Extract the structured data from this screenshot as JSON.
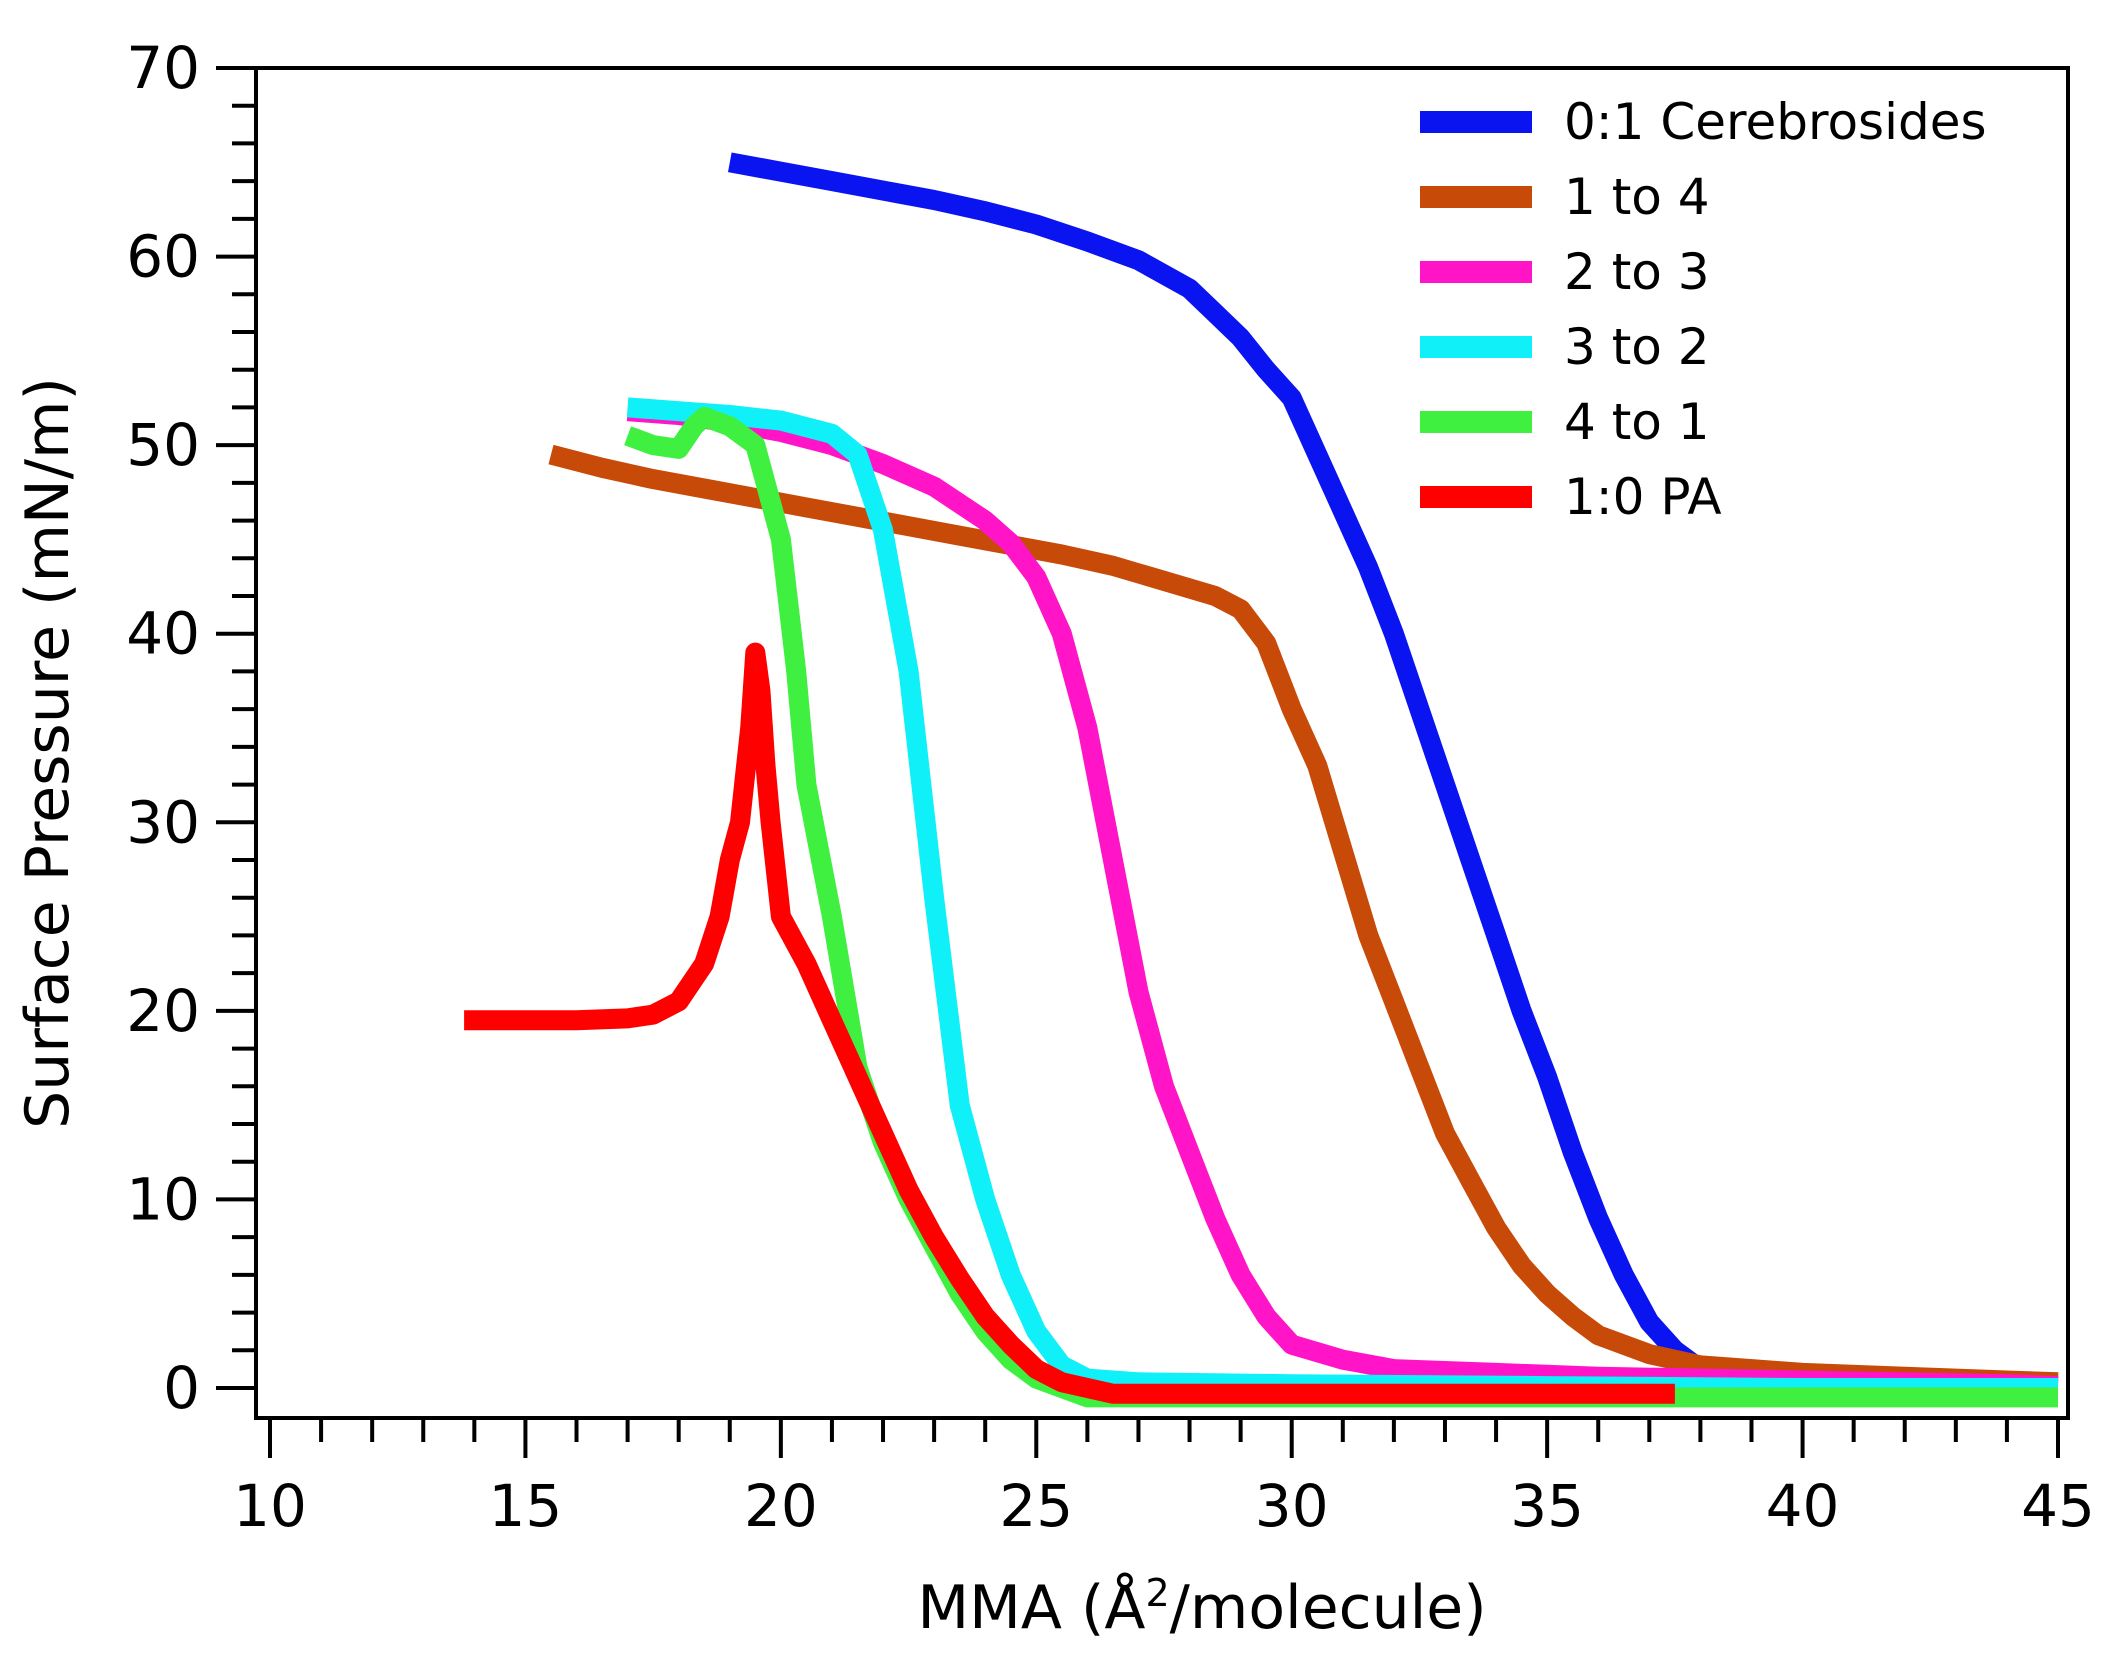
{
  "chart_data": {
    "type": "line",
    "xlabel": "MMA (Å²/molecule)",
    "xlabel_parts": {
      "before": "MMA (Å",
      "sup": "2",
      "after": "/molecule)"
    },
    "ylabel": "Surface Pressure (mN/m)",
    "xlim": [
      10,
      45
    ],
    "ylim": [
      0,
      70
    ],
    "xticks": [
      10,
      15,
      20,
      25,
      30,
      35,
      40,
      45
    ],
    "yticks": [
      0,
      10,
      20,
      30,
      40,
      50,
      60,
      70
    ],
    "grid": false,
    "legend_position": "top-right",
    "series": [
      {
        "name": "0:1 Cerebrosides",
        "color": "#0a14f0",
        "x": [
          19.0,
          20.0,
          21.0,
          22.0,
          23.0,
          24.0,
          25.0,
          26.0,
          27.0,
          28.0,
          28.5,
          29.0,
          29.5,
          30.0,
          30.5,
          31.0,
          31.5,
          32.0,
          32.5,
          33.0,
          33.5,
          34.0,
          34.5,
          35.0,
          35.5,
          36.0,
          36.5,
          37.0,
          37.5,
          38.0
        ],
        "y": [
          65.0,
          64.5,
          64.0,
          63.5,
          63.0,
          62.4,
          61.7,
          60.8,
          59.8,
          58.3,
          57.0,
          55.7,
          54.0,
          52.5,
          49.5,
          46.5,
          43.5,
          40.0,
          36.0,
          32.0,
          28.0,
          24.0,
          20.0,
          16.5,
          12.5,
          9.0,
          6.0,
          3.5,
          2.0,
          1.0
        ]
      },
      {
        "name": "1 to 4",
        "color": "#c84a08",
        "x": [
          15.5,
          16.5,
          17.5,
          18.5,
          19.5,
          20.5,
          21.5,
          22.5,
          23.5,
          24.5,
          25.5,
          26.5,
          27.5,
          28.5,
          29.0,
          29.5,
          30.0,
          30.5,
          31.0,
          31.5,
          32.0,
          32.5,
          33.0,
          33.5,
          34.0,
          34.5,
          35.0,
          35.5,
          36.0,
          37.0,
          38.0,
          39.0,
          40.0,
          42.0,
          44.0,
          45.0
        ],
        "y": [
          49.5,
          48.8,
          48.2,
          47.7,
          47.2,
          46.7,
          46.2,
          45.7,
          45.2,
          44.7,
          44.2,
          43.6,
          42.8,
          42.0,
          41.3,
          39.5,
          36.0,
          33.0,
          28.5,
          24.0,
          20.5,
          17.0,
          13.5,
          11.0,
          8.5,
          6.5,
          5.0,
          3.8,
          2.8,
          1.8,
          1.2,
          1.0,
          0.8,
          0.6,
          0.4,
          0.3
        ]
      },
      {
        "name": "2 to 3",
        "color": "#ff14c8",
        "x": [
          17.0,
          18.0,
          19.0,
          20.0,
          21.0,
          22.0,
          23.0,
          24.0,
          24.5,
          25.0,
          25.5,
          26.0,
          26.5,
          27.0,
          27.5,
          28.0,
          28.5,
          29.0,
          29.5,
          30.0,
          31.0,
          32.0,
          34.0,
          36.0,
          40.0,
          44.0,
          45.0
        ],
        "y": [
          51.8,
          51.6,
          51.2,
          50.7,
          50.0,
          49.0,
          47.8,
          46.0,
          44.8,
          43.0,
          40.0,
          35.0,
          28.0,
          21.0,
          16.0,
          12.5,
          9.0,
          6.0,
          3.8,
          2.3,
          1.5,
          1.0,
          0.8,
          0.6,
          0.4,
          0.2,
          0.1
        ]
      },
      {
        "name": "3 to 2",
        "color": "#10f0f8",
        "x": [
          17.0,
          18.0,
          19.0,
          20.0,
          21.0,
          21.5,
          22.0,
          22.5,
          23.0,
          23.5,
          24.0,
          24.5,
          25.0,
          25.5,
          26.0,
          27.0,
          30.0,
          35.0,
          40.0,
          45.0
        ],
        "y": [
          52.0,
          51.8,
          51.6,
          51.3,
          50.6,
          49.5,
          45.5,
          38.0,
          26.0,
          15.0,
          10.0,
          6.0,
          3.0,
          1.2,
          0.5,
          0.3,
          0.2,
          0.1,
          0.0,
          0.0
        ]
      },
      {
        "name": "4 to 1",
        "color": "#40f040",
        "x": [
          17.0,
          17.5,
          18.0,
          18.3,
          18.5,
          19.0,
          19.5,
          20.0,
          20.3,
          20.5,
          21.0,
          21.5,
          22.0,
          22.5,
          23.0,
          23.5,
          24.0,
          24.5,
          25.0,
          25.5,
          26.0,
          27.0,
          30.0,
          35.0,
          40.0,
          45.0
        ],
        "y": [
          50.5,
          50.0,
          49.8,
          51.0,
          51.5,
          51.0,
          50.0,
          45.0,
          38.0,
          32.0,
          25.0,
          17.0,
          13.0,
          10.0,
          7.5,
          5.0,
          3.0,
          1.5,
          0.5,
          0.0,
          -0.5,
          -0.5,
          -0.5,
          -0.5,
          -0.5,
          -0.5
        ]
      },
      {
        "name": "1:0 PA",
        "color": "#ff0000",
        "x": [
          13.8,
          15.0,
          16.0,
          17.0,
          17.5,
          18.0,
          18.5,
          18.8,
          19.0,
          19.2,
          19.4,
          19.5,
          19.6,
          19.7,
          19.8,
          20.0,
          20.5,
          21.0,
          21.5,
          22.0,
          22.5,
          23.0,
          23.5,
          24.0,
          24.5,
          25.0,
          25.5,
          26.0,
          26.5,
          30.0,
          35.0,
          37.5
        ],
        "y": [
          19.5,
          19.5,
          19.5,
          19.6,
          19.8,
          20.5,
          22.5,
          25.0,
          28.0,
          30.0,
          35.0,
          39.0,
          37.0,
          33.0,
          30.0,
          25.0,
          22.5,
          19.5,
          16.5,
          13.5,
          10.5,
          8.0,
          5.8,
          3.8,
          2.3,
          1.0,
          0.3,
          0.0,
          -0.3,
          -0.3,
          -0.3,
          -0.3
        ]
      }
    ]
  }
}
